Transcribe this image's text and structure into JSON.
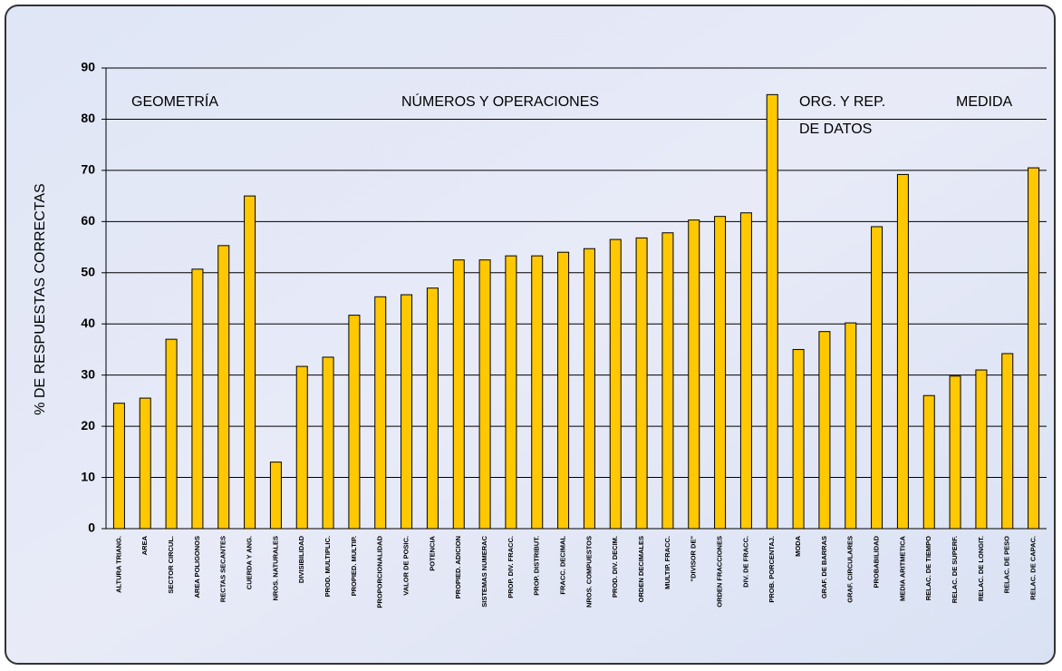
{
  "chart_data": {
    "type": "bar",
    "y_label": "% DE RESPUESTAS CORRECTAS",
    "annotations": [
      {
        "lines": [
          "GEOMETRÍA"
        ]
      },
      {
        "lines": [
          "NÚMEROS Y OPERACIONES"
        ]
      },
      {
        "lines": [
          "ORG. Y REP.",
          "DE DATOS"
        ]
      },
      {
        "lines": [
          "MEDIDA"
        ]
      }
    ],
    "categories": [
      "ALTURA TRIANG.",
      "AREA",
      "SECTOR CIRCUL.",
      "AREA POLIGONOS",
      "RECTAS SECANTES",
      "CUERDA Y ANG.",
      "NROS. NATURALES",
      "DIVISIBILIDAD",
      "PROD. MULTIPLIC.",
      "PROPIED. MULTIP.",
      "PROPORCIONALIDAD",
      "VALOR DE POSIC.",
      "POTENCIA",
      "PROPIED. ADICION",
      "SISTEMAS NUMERAC",
      "PROP. DIV. FRACC.",
      "PROP. DISTRIBUT.",
      "FRACC. DECIMAL",
      "NROS. COMPUESTOS",
      "PROD. DIV. DECIM.",
      "ORDEN DECIMALES",
      "MULTIP. FRACC.",
      "\"DIVISOR DE\"",
      "ORDEN FRACCIONES",
      "DIV. DE FRACC.",
      "PROB. PORCENTAJ.",
      "MODA",
      "GRAF. DE BARRAS",
      "GRAF. CIRCULARES",
      "PROBABILIDAD",
      "MEDIA ARITMETICA",
      "RELAC. DE TIEMPO",
      "RELAC. DE SUPERF.",
      "RELAC. DE LONGIT.",
      "RELAC. DE PESO",
      "RELAC. DE CAPAC."
    ],
    "values": [
      24.5,
      25.5,
      37,
      50.7,
      55.3,
      65,
      13,
      31.7,
      33.5,
      41.7,
      45.3,
      45.7,
      47,
      52.5,
      52.5,
      53.3,
      53.3,
      54,
      54.7,
      56.5,
      56.8,
      57.8,
      60.3,
      61,
      61.7,
      84.8,
      35,
      38.5,
      40.2,
      59,
      69.2,
      26,
      29.8,
      31,
      34.2,
      70.5
    ],
    "color": "#ffc800",
    "ylim": [
      0,
      90
    ],
    "yticks": [
      0,
      10,
      20,
      30,
      40,
      50,
      60,
      70,
      80,
      90
    ],
    "grid": true
  }
}
